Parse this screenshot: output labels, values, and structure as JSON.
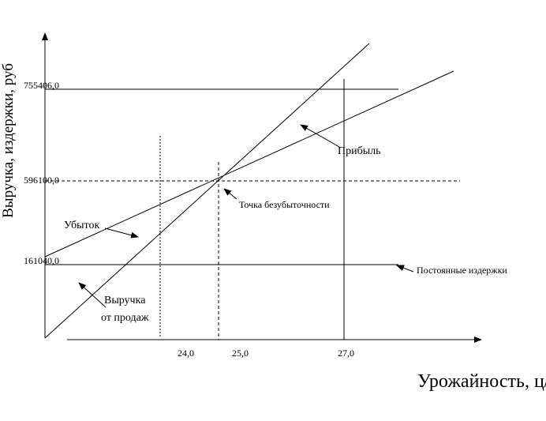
{
  "y_axis": {
    "label": "Выручка, издержки, руб",
    "ticks": [
      "755406,0",
      "596100,0",
      "161040,0"
    ]
  },
  "x_axis": {
    "label": "Урожайность, ц/га",
    "ticks": [
      "24,0",
      "25,0",
      "27,0"
    ]
  },
  "annotations": {
    "profit": "Прибыль",
    "break_even": "Точка безубыточности",
    "loss": "Убыток",
    "fixed_costs": "Постоянные издержки",
    "revenue": [
      "Выручка",
      "от продаж"
    ]
  }
}
